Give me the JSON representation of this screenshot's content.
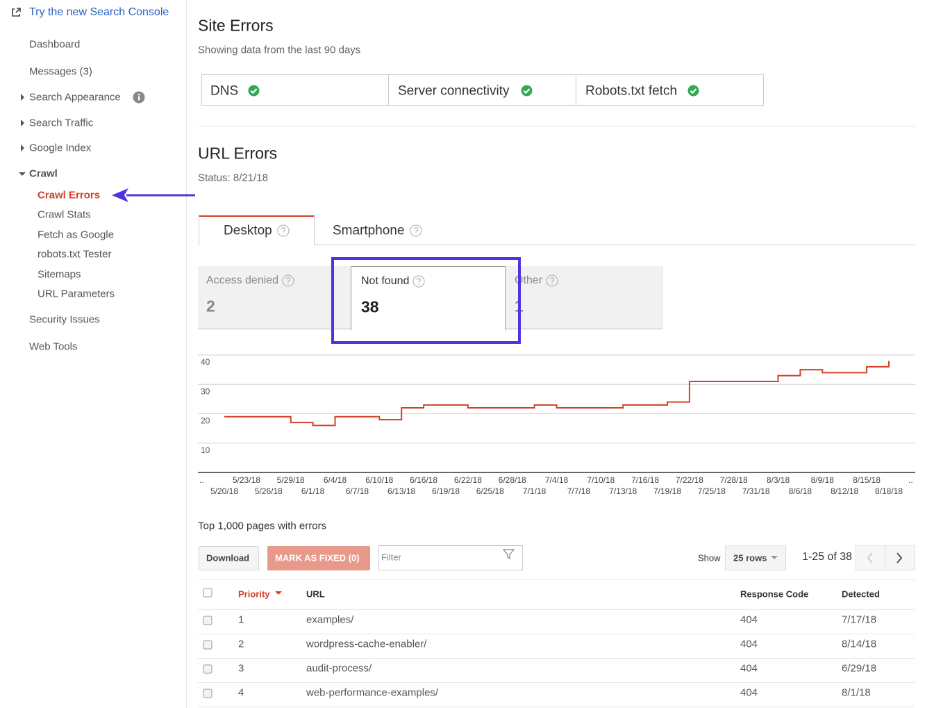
{
  "sidebar": {
    "external_link": "Try the new Search Console",
    "items": [
      "Dashboard",
      "Messages (3)",
      "Search Appearance",
      "Search Traffic",
      "Google Index",
      "Crawl",
      "Security Issues",
      "Web Tools"
    ],
    "crawl_subitems": [
      "Crawl Errors",
      "Crawl Stats",
      "Fetch as Google",
      "robots.txt Tester",
      "Sitemaps",
      "URL Parameters"
    ]
  },
  "site_errors": {
    "title": "Site Errors",
    "subtitle": "Showing data from the last 90 days",
    "checks": [
      "DNS",
      "Server connectivity",
      "Robots.txt fetch"
    ]
  },
  "url_errors": {
    "title": "URL Errors",
    "status": "Status: 8/21/18",
    "tabs": [
      "Desktop",
      "Smartphone"
    ],
    "counters": [
      {
        "label": "Access denied",
        "value": 2
      },
      {
        "label": "Not found",
        "value": 38
      },
      {
        "label": "Other",
        "value": 1
      }
    ]
  },
  "chart": {
    "type": "line",
    "categories": [
      "5/20/18",
      "5/23/18",
      "5/26/18",
      "5/29/18",
      "6/1/18",
      "6/4/18",
      "6/7/18",
      "6/10/18",
      "6/13/18",
      "6/16/18",
      "6/19/18",
      "6/22/18",
      "6/25/18",
      "6/28/18",
      "7/1/18",
      "7/4/18",
      "7/7/18",
      "7/10/18",
      "7/13/18",
      "7/16/18",
      "7/19/18",
      "7/22/18",
      "7/25/18",
      "7/28/18",
      "7/31/18",
      "8/3/18",
      "8/6/18",
      "8/9/18",
      "8/12/18",
      "8/15/18",
      "8/18/18"
    ],
    "values": [
      19,
      19,
      19,
      17,
      16,
      19,
      19,
      18,
      22,
      23,
      23,
      22,
      22,
      22,
      23,
      22,
      22,
      22,
      23,
      23,
      24,
      31,
      31,
      31,
      31,
      33,
      35,
      34,
      34,
      36,
      38
    ],
    "x_edge_labels": [
      "..",
      ".."
    ],
    "color": "#d14124",
    "ylim": [
      0,
      40
    ],
    "yticks": [
      10,
      20,
      30,
      40
    ],
    "grid": true
  },
  "table": {
    "caption": "Top 1,000 pages with errors",
    "buttons": [
      "Download",
      "MARK AS FIXED (0)"
    ],
    "filter_placeholder": "Filter",
    "show_label": "Show",
    "rows_select": "25 rows",
    "pagination": "1-25 of 38",
    "columns": [
      "Priority",
      "URL",
      "Response Code",
      "Detected"
    ],
    "rows": [
      [
        1,
        "examples/",
        404,
        "7/17/18"
      ],
      [
        2,
        "wordpress-cache-enabler/",
        404,
        "8/14/18"
      ],
      [
        3,
        "audit-process/",
        404,
        "6/29/18"
      ],
      [
        4,
        "web-performance-examples/",
        404,
        "8/1/18"
      ]
    ]
  }
}
